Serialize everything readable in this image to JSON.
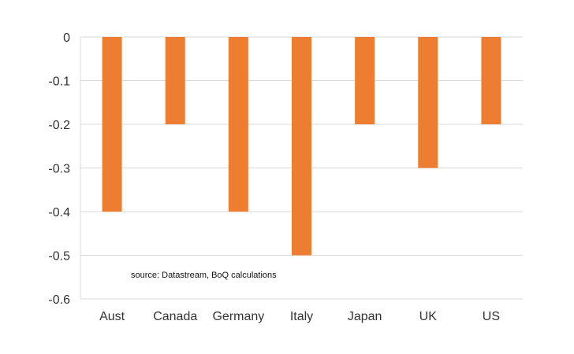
{
  "chart_data": {
    "type": "bar",
    "categories": [
      "Aust",
      "Canada",
      "Germany",
      "Italy",
      "Japan",
      "UK",
      "US"
    ],
    "values": [
      -0.4,
      -0.2,
      -0.4,
      -0.5,
      -0.2,
      -0.3,
      -0.2
    ],
    "ylim": [
      -0.6,
      0
    ],
    "yticks": [
      "0",
      "-0.1",
      "-0.2",
      "-0.3",
      "-0.4",
      "-0.5",
      "-0.6"
    ],
    "title": "",
    "xlabel": "",
    "ylabel": "",
    "grid": true,
    "bar_color": "#ED7D31",
    "annotation": "source:  Datastream, BoQ calculations"
  }
}
